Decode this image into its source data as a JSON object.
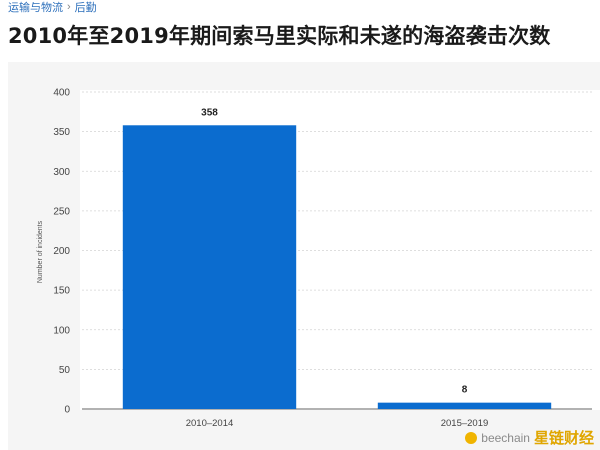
{
  "breadcrumb": {
    "items": [
      "运输与物流",
      "后勤"
    ],
    "separator": "›"
  },
  "title": "2010年至2019年期间索马里实际和未遂的海盗袭击次数",
  "watermark": {
    "handle": "beechain",
    "brand": "星链财经"
  },
  "chart_data": {
    "type": "bar",
    "categories": [
      "2010–2014",
      "2015–2019"
    ],
    "values": [
      358,
      8
    ],
    "data_labels": [
      "358",
      "8"
    ],
    "ylabel": "Number of incidents",
    "xlabel": "",
    "ylim": [
      0,
      400
    ],
    "yticks": [
      0,
      50,
      100,
      150,
      200,
      250,
      300,
      350,
      400
    ],
    "grid": true,
    "bar_color": "#0b6ccf",
    "legend": "none"
  }
}
